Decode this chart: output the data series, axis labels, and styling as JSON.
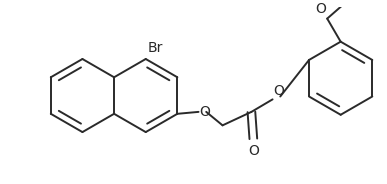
{
  "bg_color": "#ffffff",
  "line_color": "#2a2a2a",
  "lw": 1.4,
  "fs_label": 9,
  "figsize": [
    3.87,
    1.84
  ],
  "dpi": 100,
  "xlim": [
    0,
    387
  ],
  "ylim": [
    0,
    184
  ],
  "label_Br": "Br",
  "label_O": "O",
  "label_OCH3_O": "O",
  "r": 38
}
